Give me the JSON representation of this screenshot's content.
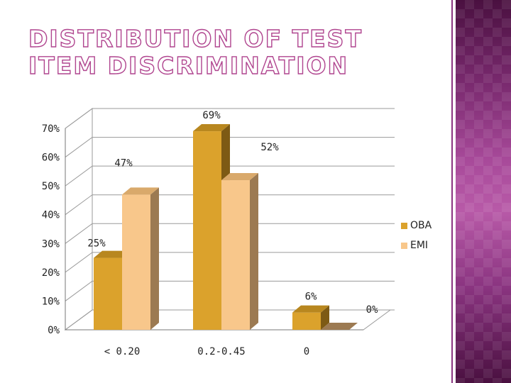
{
  "slide": {
    "title": "DISTRIBUTION OF TEST ITEM DISCRIMINATION"
  },
  "colors": {
    "title_outline": "#b0458f",
    "panel": "#7a2a6f",
    "oba_front": "#dba22c",
    "oba_side": "#7d5a14",
    "oba_top": "#b8871f",
    "emi_front": "#f8c78b",
    "emi_side": "#9c7a52",
    "emi_top": "#d9a96b"
  },
  "chart_data": {
    "type": "bar",
    "categories": [
      "< 0.20",
      "0.2-0.45",
      "0"
    ],
    "series": [
      {
        "name": "OBA",
        "values": [
          25,
          69,
          6
        ],
        "labels": [
          "25%",
          "69%",
          "6%"
        ]
      },
      {
        "name": "EMI",
        "values": [
          47,
          52,
          0
        ],
        "labels": [
          "47%",
          "52%",
          "0%"
        ]
      }
    ],
    "ylim": [
      0,
      70
    ],
    "yticks": [
      "0%",
      "10%",
      "20%",
      "30%",
      "40%",
      "50%",
      "60%",
      "70%"
    ],
    "grid": true,
    "legend": "right",
    "three_d": true
  }
}
